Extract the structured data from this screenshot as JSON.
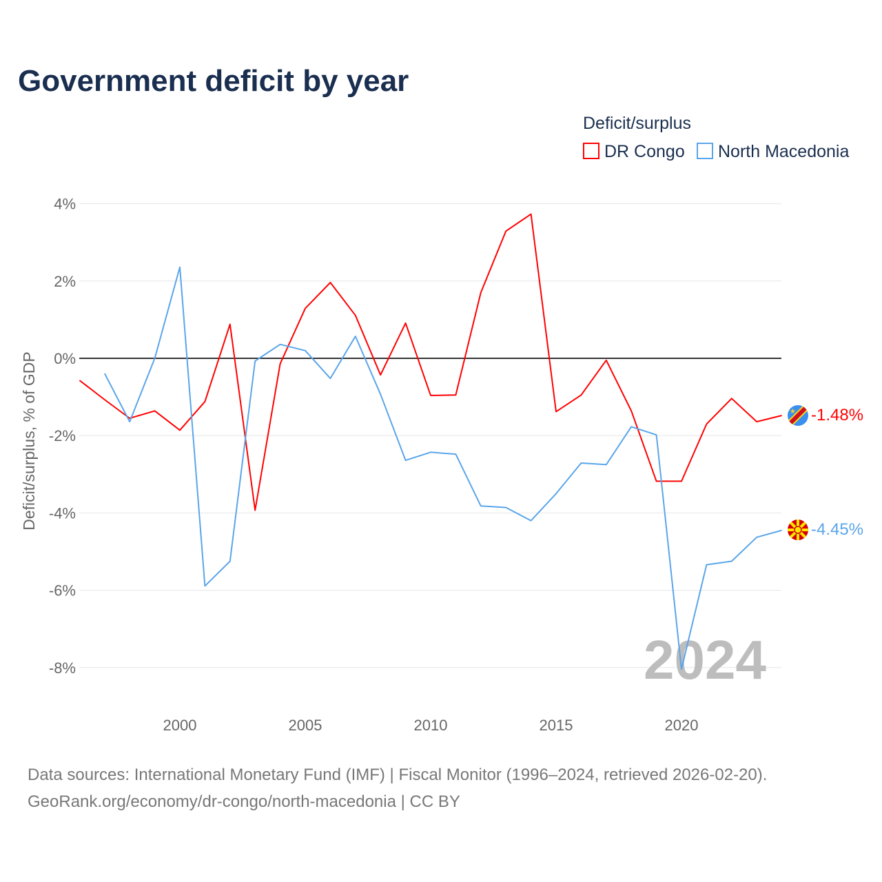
{
  "title": "Government deficit by year",
  "source_line1": "Data sources: International Monetary Fund (IMF) | Fiscal Monitor (1996–2024, retrieved 2026-02-20).",
  "source_line2": "GeoRank.org/economy/dr-congo/north-macedonia | CC BY",
  "chart_data": {
    "type": "line",
    "title": "Government deficit by year",
    "xlabel": "",
    "ylabel": "Deficit/surplus, % of GDP",
    "xlim": [
      1996,
      2024
    ],
    "ylim": [
      -9,
      4
    ],
    "x_ticks": [
      2000,
      2005,
      2010,
      2015,
      2020
    ],
    "y_ticks": [
      4,
      2,
      0,
      -2,
      -4,
      -6,
      -8
    ],
    "y_tick_labels": [
      "4%",
      "2%",
      "0%",
      "-2%",
      "-4%",
      "-6%",
      "-8%"
    ],
    "grid": true,
    "legend_title": "Deficit/surplus",
    "legend_position": "top-right",
    "year_annotation": "2024",
    "series": [
      {
        "name": "DR Congo",
        "color": "#ff0000",
        "end_label": "-1.48%",
        "flag": "dr-congo-flag-icon",
        "x": [
          1996,
          1997,
          1998,
          1999,
          2000,
          2001,
          2002,
          2003,
          2004,
          2005,
          2006,
          2007,
          2008,
          2009,
          2010,
          2011,
          2012,
          2013,
          2014,
          2015,
          2016,
          2017,
          2018,
          2019,
          2020,
          2021,
          2022,
          2023,
          2024
        ],
        "values": [
          -0.57,
          -1.07,
          -1.55,
          -1.36,
          -1.86,
          -1.12,
          0.88,
          -3.93,
          -0.14,
          1.29,
          1.96,
          1.11,
          -0.43,
          0.91,
          -0.96,
          -0.95,
          1.7,
          3.29,
          3.73,
          -1.38,
          -0.95,
          -0.05,
          -1.36,
          -3.18,
          -3.18,
          -1.7,
          -1.04,
          -1.64,
          -1.48
        ]
      },
      {
        "name": "North Macedonia",
        "color": "#5aa5ea",
        "end_label": "-4.45%",
        "flag": "north-macedonia-flag-icon",
        "x": [
          1997,
          1998,
          1999,
          2000,
          2001,
          2002,
          2003,
          2004,
          2005,
          2006,
          2007,
          2008,
          2009,
          2010,
          2011,
          2012,
          2013,
          2014,
          2015,
          2016,
          2017,
          2018,
          2019,
          2020,
          2021,
          2022,
          2023,
          2024
        ],
        "values": [
          -0.39,
          -1.64,
          0.0,
          2.36,
          -5.89,
          -5.25,
          -0.07,
          0.36,
          0.2,
          -0.52,
          0.57,
          -0.93,
          -2.64,
          -2.43,
          -2.48,
          -3.82,
          -3.86,
          -4.2,
          -3.5,
          -2.71,
          -2.75,
          -1.77,
          -1.98,
          -8.04,
          -5.34,
          -5.25,
          -4.63,
          -4.45
        ]
      }
    ]
  }
}
